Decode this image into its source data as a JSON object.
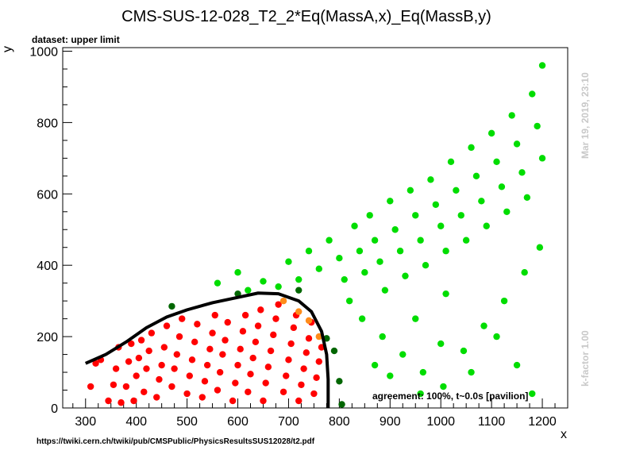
{
  "title": "CMS-SUS-12-028_T2_2*Eq(MassA,x)_Eq(MassB,y)",
  "dataset_label": "dataset: upper limit",
  "agreement_label": "agreement: 100%, t~0.0s [pavilion]",
  "timestamp": "Mar 19, 2019, 23:10",
  "kfactor": "k-factor 1.00",
  "url": "https://twiki.cern.ch/twiki/pub/CMSPublic/PhysicsResultsSUS12028/t2.pdf",
  "colors": {
    "excluded": "#ff0000",
    "allowed": "#00dd00",
    "excluded_disagree": "#ff8c1a",
    "allowed_disagree": "#006600",
    "contour": "#000000"
  },
  "chart_data": {
    "type": "scatter",
    "xlabel": "x",
    "ylabel": "y",
    "xlim": [
      255,
      1250
    ],
    "ylim": [
      0,
      1010
    ],
    "xticks": [
      300,
      400,
      500,
      600,
      700,
      800,
      900,
      1000,
      1100,
      1200
    ],
    "yticks": [
      0,
      200,
      400,
      600,
      800,
      1000
    ],
    "contour": [
      [
        300,
        125
      ],
      [
        340,
        150
      ],
      [
        380,
        185
      ],
      [
        420,
        225
      ],
      [
        460,
        255
      ],
      [
        500,
        275
      ],
      [
        550,
        295
      ],
      [
        600,
        310
      ],
      [
        640,
        322
      ],
      [
        680,
        320
      ],
      [
        720,
        300
      ],
      [
        745,
        270
      ],
      [
        765,
        215
      ],
      [
        775,
        150
      ],
      [
        778,
        80
      ],
      [
        778,
        0
      ]
    ],
    "series": [
      {
        "class": "excluded",
        "points": [
          [
            310,
            60
          ],
          [
            320,
            125
          ],
          [
            330,
            135
          ],
          [
            345,
            20
          ],
          [
            355,
            65
          ],
          [
            360,
            110
          ],
          [
            365,
            170
          ],
          [
            370,
            15
          ],
          [
            380,
            60
          ],
          [
            385,
            130
          ],
          [
            390,
            180
          ],
          [
            395,
            20
          ],
          [
            400,
            90
          ],
          [
            405,
            140
          ],
          [
            410,
            190
          ],
          [
            415,
            45
          ],
          [
            420,
            110
          ],
          [
            425,
            160
          ],
          [
            430,
            210
          ],
          [
            440,
            30
          ],
          [
            445,
            80
          ],
          [
            450,
            120
          ],
          [
            455,
            170
          ],
          [
            460,
            230
          ],
          [
            470,
            60
          ],
          [
            475,
            110
          ],
          [
            480,
            150
          ],
          [
            485,
            200
          ],
          [
            490,
            250
          ],
          [
            500,
            40
          ],
          [
            505,
            90
          ],
          [
            510,
            135
          ],
          [
            515,
            185
          ],
          [
            520,
            235
          ],
          [
            530,
            30
          ],
          [
            535,
            75
          ],
          [
            540,
            120
          ],
          [
            545,
            165
          ],
          [
            550,
            210
          ],
          [
            555,
            260
          ],
          [
            560,
            50
          ],
          [
            565,
            100
          ],
          [
            570,
            150
          ],
          [
            575,
            190
          ],
          [
            580,
            240
          ],
          [
            590,
            20
          ],
          [
            595,
            70
          ],
          [
            600,
            120
          ],
          [
            605,
            165
          ],
          [
            610,
            215
          ],
          [
            615,
            260
          ],
          [
            620,
            45
          ],
          [
            625,
            95
          ],
          [
            630,
            140
          ],
          [
            635,
            185
          ],
          [
            640,
            230
          ],
          [
            645,
            275
          ],
          [
            650,
            20
          ],
          [
            655,
            70
          ],
          [
            660,
            115
          ],
          [
            665,
            160
          ],
          [
            670,
            205
          ],
          [
            675,
            250
          ],
          [
            680,
            290
          ],
          [
            690,
            45
          ],
          [
            695,
            90
          ],
          [
            700,
            135
          ],
          [
            705,
            180
          ],
          [
            710,
            225
          ],
          [
            715,
            260
          ],
          [
            720,
            20
          ],
          [
            725,
            65
          ],
          [
            730,
            110
          ],
          [
            735,
            155
          ],
          [
            740,
            195
          ],
          [
            745,
            240
          ],
          [
            750,
            40
          ],
          [
            755,
            85
          ],
          [
            760,
            130
          ],
          [
            765,
            170
          ]
        ]
      },
      {
        "class": "allowed",
        "points": [
          [
            560,
            350
          ],
          [
            600,
            380
          ],
          [
            620,
            330
          ],
          [
            650,
            355
          ],
          [
            680,
            340
          ],
          [
            700,
            410
          ],
          [
            720,
            360
          ],
          [
            740,
            440
          ],
          [
            760,
            390
          ],
          [
            780,
            470
          ],
          [
            800,
            420
          ],
          [
            810,
            360
          ],
          [
            820,
            300
          ],
          [
            830,
            510
          ],
          [
            840,
            440
          ],
          [
            845,
            250
          ],
          [
            850,
            380
          ],
          [
            860,
            540
          ],
          [
            870,
            470
          ],
          [
            880,
            410
          ],
          [
            885,
            200
          ],
          [
            890,
            330
          ],
          [
            900,
            580
          ],
          [
            910,
            500
          ],
          [
            920,
            440
          ],
          [
            925,
            150
          ],
          [
            930,
            370
          ],
          [
            940,
            610
          ],
          [
            950,
            540
          ],
          [
            960,
            470
          ],
          [
            965,
            100
          ],
          [
            970,
            400
          ],
          [
            980,
            640
          ],
          [
            990,
            570
          ],
          [
            1000,
            510
          ],
          [
            1005,
            60
          ],
          [
            1010,
            440
          ],
          [
            1020,
            690
          ],
          [
            1030,
            610
          ],
          [
            1040,
            540
          ],
          [
            1045,
            160
          ],
          [
            1050,
            470
          ],
          [
            1060,
            730
          ],
          [
            1070,
            650
          ],
          [
            1080,
            580
          ],
          [
            1085,
            230
          ],
          [
            1090,
            510
          ],
          [
            1100,
            770
          ],
          [
            1110,
            690
          ],
          [
            1120,
            620
          ],
          [
            1125,
            300
          ],
          [
            1130,
            550
          ],
          [
            1140,
            820
          ],
          [
            1150,
            740
          ],
          [
            1160,
            660
          ],
          [
            1165,
            380
          ],
          [
            1170,
            590
          ],
          [
            1180,
            880
          ],
          [
            1190,
            790
          ],
          [
            1195,
            450
          ],
          [
            1200,
            700
          ],
          [
            1200,
            960
          ],
          [
            870,
            120
          ],
          [
            950,
            250
          ],
          [
            1010,
            320
          ],
          [
            1060,
            100
          ],
          [
            1110,
            200
          ],
          [
            1150,
            120
          ],
          [
            1180,
            40
          ],
          [
            1000,
            180
          ],
          [
            900,
            90
          ],
          [
            960,
            40
          ]
        ]
      },
      {
        "class": "excluded_disagree",
        "points": [
          [
            690,
            300
          ],
          [
            720,
            270
          ],
          [
            740,
            245
          ],
          [
            760,
            200
          ]
        ]
      },
      {
        "class": "allowed_disagree",
        "points": [
          [
            470,
            285
          ],
          [
            600,
            320
          ],
          [
            720,
            330
          ],
          [
            775,
            195
          ],
          [
            790,
            160
          ],
          [
            800,
            75
          ],
          [
            805,
            10
          ]
        ]
      }
    ]
  }
}
